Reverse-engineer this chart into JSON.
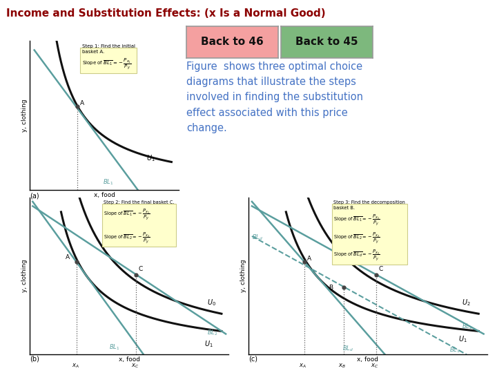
{
  "title": "Income and Substitution Effects: (x Is a Normal Good)",
  "title_color": "#8B0000",
  "title_fontsize": 11,
  "btn1_text": "Back to 46",
  "btn2_text": "Back to 45",
  "btn1_color": "#F4A0A0",
  "btn2_color": "#7DB87D",
  "btn_text_color": "#111111",
  "body_text": "Figure  shows three optimal choice\ndiagrams that illustrate the steps\ninvolved in finding the substitution\neffect associated with this price\nchange.",
  "body_text_color": "#4472C4",
  "body_fontsize": 10.5,
  "bg_color": "#FFFFFF",
  "diagram_a_label": "(a)",
  "diagram_b_label": "(b)",
  "diagram_c_label": "(c)",
  "ylabel": "y, clothing",
  "xlabel": "x, food",
  "teal_color": "#5A9E9E",
  "black_color": "#111111",
  "note_bg": "#FFFFCC",
  "note_border": "#CCCC88"
}
